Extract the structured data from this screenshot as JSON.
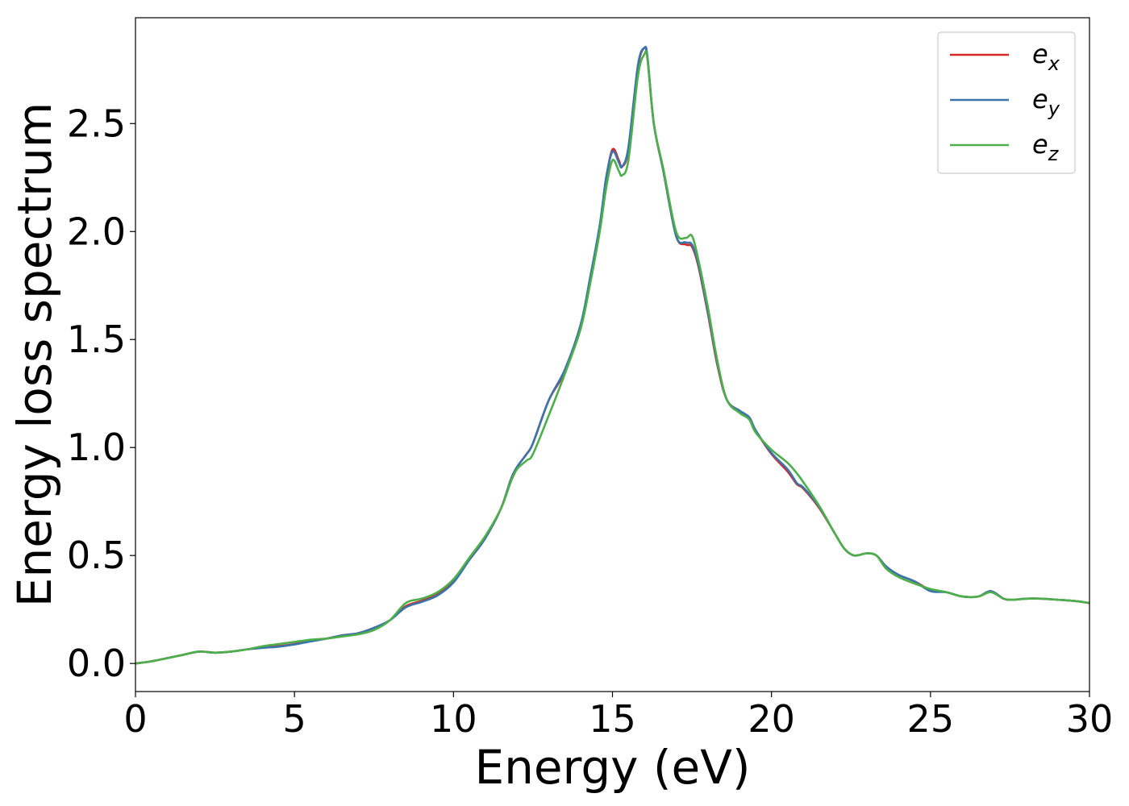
{
  "chart_data": {
    "type": "line",
    "title": "",
    "xlabel": "Energy (eV)",
    "ylabel": "Energy loss spectrum",
    "xlim": [
      0,
      30
    ],
    "ylim": [
      -0.13,
      2.99
    ],
    "xticks": [
      {
        "value": 0,
        "label": "0"
      },
      {
        "value": 5,
        "label": "5"
      },
      {
        "value": 10,
        "label": "10"
      },
      {
        "value": 15,
        "label": "15"
      },
      {
        "value": 20,
        "label": "20"
      },
      {
        "value": 25,
        "label": "25"
      },
      {
        "value": 30,
        "label": "30"
      }
    ],
    "yticks": [
      {
        "value": 0.0,
        "label": "0.0"
      },
      {
        "value": 0.5,
        "label": "0.5"
      },
      {
        "value": 1.0,
        "label": "1.0"
      },
      {
        "value": 1.5,
        "label": "1.5"
      },
      {
        "value": 2.0,
        "label": "2.0"
      },
      {
        "value": 2.5,
        "label": "2.5"
      }
    ],
    "grid": false,
    "legend_position": "top-right",
    "series": [
      {
        "name": "e_x",
        "legend_base": "e",
        "legend_sub": "x",
        "color": "#d62728",
        "x": [
          0,
          0.5,
          1,
          1.5,
          2,
          2.5,
          3,
          3.5,
          4,
          4.5,
          5,
          5.5,
          6,
          6.5,
          7,
          7.5,
          8,
          8.5,
          9,
          9.5,
          10,
          10.5,
          11,
          11.5,
          11.8,
          12,
          12.3,
          12.5,
          13,
          13.5,
          14,
          14.3,
          14.6,
          14.8,
          15,
          15.2,
          15.3,
          15.5,
          15.8,
          16,
          16.1,
          16.3,
          16.6,
          17,
          17.3,
          17.5,
          17.7,
          18,
          18.3,
          18.6,
          19,
          19.3,
          19.5,
          20,
          20.5,
          20.8,
          21,
          21.5,
          22,
          22.3,
          22.6,
          23,
          23.3,
          23.6,
          24,
          24.5,
          25,
          25.5,
          26,
          26.5,
          26.9,
          27.3,
          27.6,
          28,
          28.5,
          29,
          29.5,
          30
        ],
        "y": [
          0.0,
          0.01,
          0.025,
          0.04,
          0.055,
          0.05,
          0.055,
          0.065,
          0.075,
          0.08,
          0.09,
          0.105,
          0.115,
          0.13,
          0.14,
          0.165,
          0.2,
          0.265,
          0.29,
          0.32,
          0.38,
          0.48,
          0.58,
          0.72,
          0.85,
          0.91,
          0.97,
          1.02,
          1.22,
          1.35,
          1.56,
          1.78,
          2.02,
          2.24,
          2.38,
          2.33,
          2.3,
          2.38,
          2.76,
          2.85,
          2.8,
          2.5,
          2.28,
          1.98,
          1.94,
          1.93,
          1.84,
          1.62,
          1.38,
          1.22,
          1.17,
          1.14,
          1.08,
          0.97,
          0.89,
          0.83,
          0.81,
          0.72,
          0.6,
          0.53,
          0.5,
          0.51,
          0.5,
          0.45,
          0.41,
          0.38,
          0.34,
          0.33,
          0.31,
          0.31,
          0.335,
          0.3,
          0.295,
          0.3,
          0.3,
          0.295,
          0.29,
          0.28
        ]
      },
      {
        "name": "e_y",
        "legend_base": "e",
        "legend_sub": "y",
        "color": "#3a74ad",
        "x": [
          0,
          0.5,
          1,
          1.5,
          2,
          2.5,
          3,
          3.5,
          4,
          4.5,
          5,
          5.5,
          6,
          6.5,
          7,
          7.5,
          8,
          8.5,
          9,
          9.5,
          10,
          10.5,
          11,
          11.5,
          11.8,
          12,
          12.3,
          12.5,
          13,
          13.5,
          14,
          14.3,
          14.6,
          14.8,
          15,
          15.2,
          15.3,
          15.5,
          15.8,
          16,
          16.1,
          16.3,
          16.6,
          17,
          17.3,
          17.5,
          17.7,
          18,
          18.3,
          18.6,
          19,
          19.3,
          19.5,
          20,
          20.5,
          20.8,
          21,
          21.5,
          22,
          22.3,
          22.6,
          23,
          23.3,
          23.6,
          24,
          24.5,
          25,
          25.5,
          26,
          26.5,
          26.9,
          27.3,
          27.6,
          28,
          28.5,
          29,
          29.5,
          30
        ],
        "y": [
          0.0,
          0.01,
          0.025,
          0.04,
          0.055,
          0.05,
          0.055,
          0.065,
          0.072,
          0.078,
          0.088,
          0.102,
          0.115,
          0.13,
          0.14,
          0.165,
          0.2,
          0.26,
          0.285,
          0.315,
          0.375,
          0.48,
          0.58,
          0.72,
          0.85,
          0.91,
          0.97,
          1.02,
          1.22,
          1.36,
          1.57,
          1.79,
          2.03,
          2.25,
          2.37,
          2.32,
          2.3,
          2.39,
          2.77,
          2.85,
          2.81,
          2.5,
          2.28,
          1.98,
          1.95,
          1.94,
          1.85,
          1.63,
          1.39,
          1.22,
          1.17,
          1.14,
          1.08,
          0.975,
          0.9,
          0.835,
          0.815,
          0.725,
          0.6,
          0.53,
          0.5,
          0.51,
          0.5,
          0.45,
          0.41,
          0.38,
          0.335,
          0.33,
          0.31,
          0.31,
          0.335,
          0.3,
          0.295,
          0.3,
          0.3,
          0.295,
          0.29,
          0.28
        ]
      },
      {
        "name": "e_z",
        "legend_base": "e",
        "legend_sub": "z",
        "color": "#4daf4a",
        "x": [
          0,
          0.5,
          1,
          1.5,
          2,
          2.5,
          3,
          3.5,
          4,
          4.5,
          5,
          5.5,
          6,
          6.5,
          7,
          7.5,
          8,
          8.5,
          9,
          9.5,
          10,
          10.5,
          11,
          11.5,
          11.8,
          12,
          12.3,
          12.5,
          13,
          13.5,
          14,
          14.3,
          14.6,
          14.8,
          15,
          15.2,
          15.3,
          15.5,
          15.8,
          16,
          16.1,
          16.3,
          16.6,
          17,
          17.3,
          17.5,
          17.7,
          18,
          18.3,
          18.6,
          19,
          19.3,
          19.5,
          20,
          20.5,
          20.8,
          21,
          21.5,
          22,
          22.3,
          22.6,
          23,
          23.3,
          23.6,
          24,
          24.5,
          25,
          25.5,
          26,
          26.5,
          26.9,
          27.3,
          27.6,
          28,
          28.5,
          29,
          29.5,
          30
        ],
        "y": [
          0.0,
          0.01,
          0.025,
          0.04,
          0.055,
          0.05,
          0.055,
          0.065,
          0.08,
          0.09,
          0.1,
          0.11,
          0.115,
          0.125,
          0.135,
          0.155,
          0.2,
          0.28,
          0.3,
          0.33,
          0.39,
          0.49,
          0.59,
          0.72,
          0.84,
          0.9,
          0.94,
          0.97,
          1.15,
          1.34,
          1.55,
          1.76,
          2.0,
          2.2,
          2.33,
          2.28,
          2.26,
          2.33,
          2.72,
          2.82,
          2.8,
          2.5,
          2.29,
          2.0,
          1.97,
          1.98,
          1.87,
          1.65,
          1.4,
          1.22,
          1.16,
          1.13,
          1.07,
          0.99,
          0.93,
          0.88,
          0.84,
          0.73,
          0.6,
          0.53,
          0.5,
          0.51,
          0.5,
          0.44,
          0.4,
          0.37,
          0.345,
          0.33,
          0.31,
          0.31,
          0.33,
          0.3,
          0.295,
          0.3,
          0.3,
          0.295,
          0.29,
          0.28
        ]
      }
    ]
  }
}
